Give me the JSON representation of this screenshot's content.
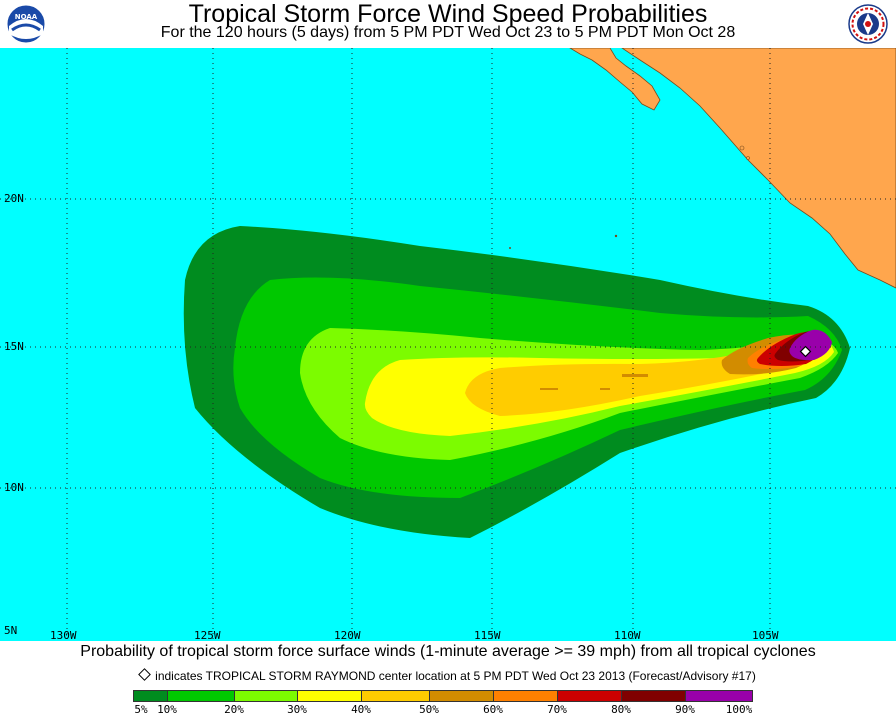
{
  "header": {
    "title": "Tropical Storm Force Wind Speed Probabilities",
    "subtitle": "For the 120 hours (5 days) from 5 PM PDT Wed Oct 23 to 5 PM PDT Mon Oct 28",
    "left_logo": "NOAA",
    "right_logo": "NATIONAL WEATHER SERVICE"
  },
  "map": {
    "ocean_color": "#00ffff",
    "land_color": "#ffa64d",
    "lat_labels": [
      "20N",
      "15N",
      "10N",
      "5N"
    ],
    "lon_labels": [
      "130W",
      "125W",
      "120W",
      "115W",
      "110W",
      "105W"
    ],
    "storm_center": {
      "lat": 14.8,
      "lon": "103.9W"
    }
  },
  "footer": {
    "caption": "Probability of tropical storm force surface winds (1-minute average >= 39 mph) from all tropical cyclones",
    "note": "indicates TROPICAL STORM RAYMOND center location at 5 PM PDT Wed Oct 23 2013 (Forecast/Advisory #17)"
  },
  "legend": {
    "bins": [
      {
        "color": "#008c1f"
      },
      {
        "color": "#00c800"
      },
      {
        "color": "#7cfc00"
      },
      {
        "color": "#ffff00"
      },
      {
        "color": "#ffcc00"
      },
      {
        "color": "#d28c00"
      },
      {
        "color": "#ff8000"
      },
      {
        "color": "#cc0000"
      },
      {
        "color": "#800000"
      },
      {
        "color": "#9900aa"
      }
    ],
    "labels": [
      "5%",
      "10%",
      "20%",
      "30%",
      "40%",
      "50%",
      "60%",
      "70%",
      "80%",
      "90%",
      "100%"
    ]
  }
}
